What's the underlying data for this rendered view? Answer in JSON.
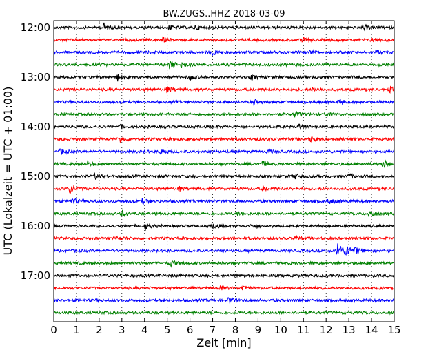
{
  "chart_data": {
    "type": "line",
    "title": "BW.ZUGS..HHZ 2018-03-09",
    "xlabel": "Zeit  [min]",
    "ylabel": "UTC (Lokalzeit = UTC + 01:00)",
    "xlim": [
      0,
      15
    ],
    "x_ticks": [
      0,
      1,
      2,
      3,
      4,
      5,
      6,
      7,
      8,
      9,
      10,
      11,
      12,
      13,
      14,
      15
    ],
    "y_tick_labels": [
      "12:00",
      "13:00",
      "14:00",
      "15:00",
      "16:00",
      "17:00"
    ],
    "y_tick_traces": [
      0,
      4,
      8,
      12,
      16,
      20
    ],
    "grid": "vertical dotted at each minute",
    "trace_colors": [
      "#000000",
      "#ff0000",
      "#0000ff",
      "#008000"
    ],
    "series": [
      {
        "start": "12:00",
        "events": [
          {
            "t": 2.2,
            "a": 6
          },
          {
            "t": 5.1,
            "a": 4
          },
          {
            "t": 6.2,
            "a": 3
          },
          {
            "t": 13.6,
            "a": 4
          }
        ]
      },
      {
        "start": "12:15",
        "events": [
          {
            "t": 4.8,
            "a": 3
          },
          {
            "t": 10.9,
            "a": 4
          },
          {
            "t": 14.0,
            "a": 3
          }
        ]
      },
      {
        "start": "12:30",
        "events": [
          {
            "t": 7.0,
            "a": 4
          },
          {
            "t": 11.3,
            "a": 3
          },
          {
            "t": 14.2,
            "a": 3
          }
        ]
      },
      {
        "start": "12:45",
        "events": [
          {
            "t": 5.1,
            "a": 6
          },
          {
            "t": 5.6,
            "a": 4
          }
        ]
      },
      {
        "start": "13:00",
        "events": [
          {
            "t": 2.8,
            "a": 5
          },
          {
            "t": 6.0,
            "a": 4
          },
          {
            "t": 8.7,
            "a": 3
          }
        ]
      },
      {
        "start": "13:15",
        "events": [
          {
            "t": 5.0,
            "a": 5
          },
          {
            "t": 11.4,
            "a": 3
          },
          {
            "t": 14.8,
            "a": 4
          }
        ]
      },
      {
        "start": "13:30",
        "events": [
          {
            "t": 8.8,
            "a": 4
          },
          {
            "t": 12.6,
            "a": 4
          }
        ]
      },
      {
        "start": "13:45",
        "events": [
          {
            "t": 10.6,
            "a": 5
          },
          {
            "t": 11.9,
            "a": 3
          }
        ]
      },
      {
        "start": "14:00",
        "events": [
          {
            "t": 10.8,
            "a": 5
          },
          {
            "t": 2.9,
            "a": 3
          }
        ]
      },
      {
        "start": "14:15",
        "events": [
          {
            "t": 2.9,
            "a": 5
          },
          {
            "t": 11.3,
            "a": 4
          }
        ]
      },
      {
        "start": "14:30",
        "events": [
          {
            "t": 0.3,
            "a": 4
          },
          {
            "t": 4.7,
            "a": 4
          },
          {
            "t": 9.4,
            "a": 3
          }
        ]
      },
      {
        "start": "14:45",
        "events": [
          {
            "t": 1.5,
            "a": 4
          },
          {
            "t": 9.2,
            "a": 4
          },
          {
            "t": 14.5,
            "a": 7
          }
        ]
      },
      {
        "start": "15:00",
        "events": [
          {
            "t": 1.8,
            "a": 4
          },
          {
            "t": 10.6,
            "a": 4
          },
          {
            "t": 13.0,
            "a": 4
          }
        ]
      },
      {
        "start": "15:15",
        "events": [
          {
            "t": 0.7,
            "a": 6
          },
          {
            "t": 5.5,
            "a": 3
          },
          {
            "t": 9.2,
            "a": 3
          }
        ]
      },
      {
        "start": "15:30",
        "events": [
          {
            "t": 0.8,
            "a": 4
          },
          {
            "t": 3.9,
            "a": 3
          },
          {
            "t": 12.1,
            "a": 4
          }
        ]
      },
      {
        "start": "15:45",
        "events": [
          {
            "t": 3.0,
            "a": 4
          },
          {
            "t": 8.1,
            "a": 3
          },
          {
            "t": 13.9,
            "a": 6
          }
        ]
      },
      {
        "start": "16:00",
        "events": [
          {
            "t": 4.0,
            "a": 6
          },
          {
            "t": 7.0,
            "a": 4
          },
          {
            "t": 8.7,
            "a": 3
          }
        ]
      },
      {
        "start": "16:15",
        "events": [
          {
            "t": 2.8,
            "a": 3
          },
          {
            "t": 10.6,
            "a": 3
          }
        ]
      },
      {
        "start": "16:30",
        "events": [
          {
            "t": 12.5,
            "a": 16
          },
          {
            "t": 12.9,
            "a": 9
          },
          {
            "t": 13.3,
            "a": 5
          }
        ]
      },
      {
        "start": "16:45",
        "events": [
          {
            "t": 5.1,
            "a": 5
          }
        ]
      },
      {
        "start": "17:00",
        "events": []
      },
      {
        "start": "17:15",
        "events": [
          {
            "t": 7.3,
            "a": 3
          },
          {
            "t": 8.3,
            "a": 4
          }
        ]
      },
      {
        "start": "17:30",
        "events": [
          {
            "t": 7.7,
            "a": 5
          }
        ]
      },
      {
        "start": "17:45",
        "events": []
      }
    ]
  }
}
